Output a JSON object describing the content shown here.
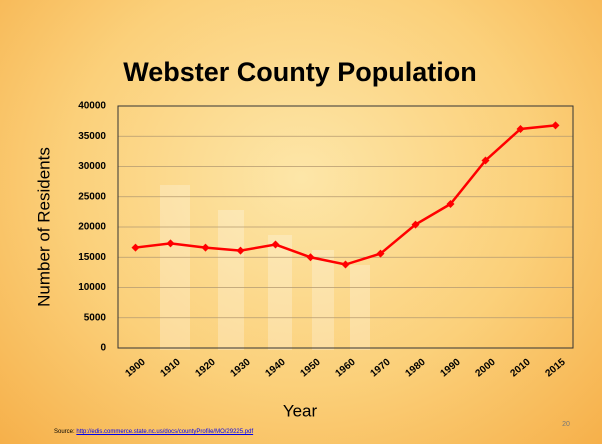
{
  "slide": {
    "page_number": "20",
    "source_label": "Source:",
    "source_url": "http://edis.commerce.state.nc.us/docs/countyProfile/MO/29225.pdf"
  },
  "chart_data": {
    "type": "line",
    "title": "Webster County Population",
    "x_label": "Year",
    "y_label": "Number of Residents",
    "categories": [
      "1900",
      "1910",
      "1920",
      "1930",
      "1940",
      "1950",
      "1960",
      "1970",
      "1980",
      "1990",
      "2000",
      "2010",
      "2015"
    ],
    "series": [
      {
        "name": "Population",
        "color": "#ff0000",
        "values": [
          16600,
          17300,
          16600,
          16100,
          17100,
          15000,
          13800,
          15600,
          20400,
          23800,
          31000,
          36200,
          36800
        ]
      }
    ],
    "ylim": [
      0,
      40000
    ],
    "yticks": [
      0,
      5000,
      10000,
      15000,
      20000,
      25000,
      30000,
      35000,
      40000
    ],
    "grid": true
  }
}
